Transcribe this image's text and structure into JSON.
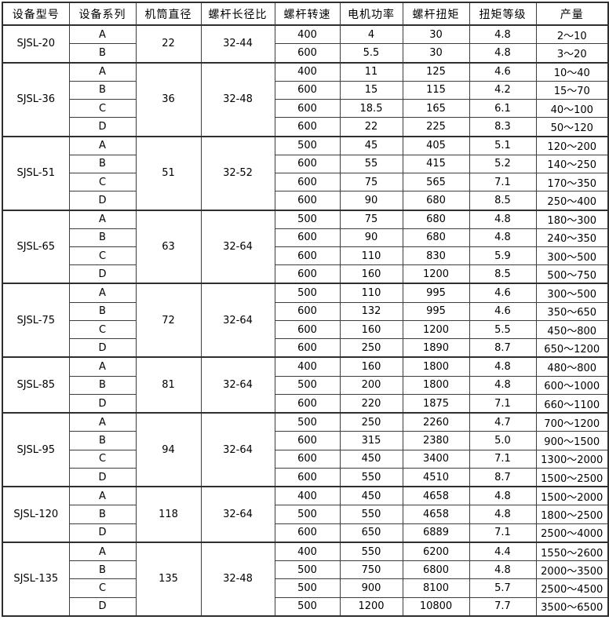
{
  "colors": {
    "background": "#ffffff",
    "border": "#2e2e2e",
    "inner_border": "#3d3d3d",
    "text": "#000000"
  },
  "chart_data": {
    "type": "table",
    "title": "",
    "columns": [
      "设备型号",
      "设备系列",
      "机筒直径",
      "螺杆长径比",
      "螺杆转速",
      "电机功率",
      "螺杆扭矩",
      "扭矩等级",
      "产量"
    ],
    "groups": [
      {
        "model": "SJSL-20",
        "diameter": "22",
        "ld_ratio": "32-44",
        "rows": [
          {
            "series": "A",
            "speed": "400",
            "power": "4",
            "torque": "30",
            "grade": "4.8",
            "output": "2～10"
          },
          {
            "series": "B",
            "speed": "600",
            "power": "5.5",
            "torque": "30",
            "grade": "4.8",
            "output": "3～20"
          }
        ]
      },
      {
        "model": "SJSL-36",
        "diameter": "36",
        "ld_ratio": "32-48",
        "rows": [
          {
            "series": "A",
            "speed": "400",
            "power": "11",
            "torque": "125",
            "grade": "4.6",
            "output": "10～40"
          },
          {
            "series": "B",
            "speed": "600",
            "power": "15",
            "torque": "115",
            "grade": "4.2",
            "output": "15～70"
          },
          {
            "series": "C",
            "speed": "600",
            "power": "18.5",
            "torque": "165",
            "grade": "6.1",
            "output": "40～100"
          },
          {
            "series": "D",
            "speed": "600",
            "power": "22",
            "torque": "225",
            "grade": "8.3",
            "output": "50～120"
          }
        ]
      },
      {
        "model": "SJSL-51",
        "diameter": "51",
        "ld_ratio": "32-52",
        "rows": [
          {
            "series": "A",
            "speed": "500",
            "power": "45",
            "torque": "405",
            "grade": "5.1",
            "output": "120～200"
          },
          {
            "series": "B",
            "speed": "600",
            "power": "55",
            "torque": "415",
            "grade": "5.2",
            "output": "140～250"
          },
          {
            "series": "C",
            "speed": "600",
            "power": "75",
            "torque": "565",
            "grade": "7.1",
            "output": "170～350"
          },
          {
            "series": "D",
            "speed": "600",
            "power": "90",
            "torque": "680",
            "grade": "8.5",
            "output": "250～400"
          }
        ]
      },
      {
        "model": "SJSL-65",
        "diameter": "63",
        "ld_ratio": "32-64",
        "rows": [
          {
            "series": "A",
            "speed": "500",
            "power": "75",
            "torque": "680",
            "grade": "4.8",
            "output": "180～300"
          },
          {
            "series": "B",
            "speed": "600",
            "power": "90",
            "torque": "680",
            "grade": "4.8",
            "output": "240～350"
          },
          {
            "series": "C",
            "speed": "600",
            "power": "110",
            "torque": "830",
            "grade": "5.9",
            "output": "300～500"
          },
          {
            "series": "D",
            "speed": "600",
            "power": "160",
            "torque": "1200",
            "grade": "8.5",
            "output": "500～750"
          }
        ]
      },
      {
        "model": "SJSL-75",
        "diameter": "72",
        "ld_ratio": "32-64",
        "rows": [
          {
            "series": "A",
            "speed": "500",
            "power": "110",
            "torque": "995",
            "grade": "4.6",
            "output": "300～500"
          },
          {
            "series": "B",
            "speed": "600",
            "power": "132",
            "torque": "995",
            "grade": "4.6",
            "output": "350～650"
          },
          {
            "series": "C",
            "speed": "600",
            "power": "160",
            "torque": "1200",
            "grade": "5.5",
            "output": "450～800"
          },
          {
            "series": "D",
            "speed": "600",
            "power": "250",
            "torque": "1890",
            "grade": "8.7",
            "output": "650～1200"
          }
        ]
      },
      {
        "model": "SJSL-85",
        "diameter": "81",
        "ld_ratio": "32-64",
        "rows": [
          {
            "series": "A",
            "speed": "400",
            "power": "160",
            "torque": "1800",
            "grade": "4.8",
            "output": "480～800"
          },
          {
            "series": "B",
            "speed": "500",
            "power": "200",
            "torque": "1800",
            "grade": "4.8",
            "output": "600～1000"
          },
          {
            "series": "D",
            "speed": "600",
            "power": "220",
            "torque": "1875",
            "grade": "7.1",
            "output": "660～1100"
          }
        ]
      },
      {
        "model": "SJSL-95",
        "diameter": "94",
        "ld_ratio": "32-64",
        "rows": [
          {
            "series": "A",
            "speed": "500",
            "power": "250",
            "torque": "2260",
            "grade": "4.7",
            "output": "700～1200"
          },
          {
            "series": "B",
            "speed": "600",
            "power": "315",
            "torque": "2380",
            "grade": "5.0",
            "output": "900～1500"
          },
          {
            "series": "C",
            "speed": "600",
            "power": "450",
            "torque": "3400",
            "grade": "7.1",
            "output": "1300～2000"
          },
          {
            "series": "D",
            "speed": "600",
            "power": "550",
            "torque": "4510",
            "grade": "8.7",
            "output": "1500～2500"
          }
        ]
      },
      {
        "model": "SJSL-120",
        "diameter": "118",
        "ld_ratio": "32-64",
        "rows": [
          {
            "series": "A",
            "speed": "400",
            "power": "450",
            "torque": "4658",
            "grade": "4.8",
            "output": "1500～2000"
          },
          {
            "series": "B",
            "speed": "500",
            "power": "550",
            "torque": "4658",
            "grade": "4.8",
            "output": "1800～2500"
          },
          {
            "series": "D",
            "speed": "600",
            "power": "650",
            "torque": "6889",
            "grade": "7.1",
            "output": "2500～4000"
          }
        ]
      },
      {
        "model": "SJSL-135",
        "diameter": "135",
        "ld_ratio": "32-48",
        "rows": [
          {
            "series": "A",
            "speed": "400",
            "power": "550",
            "torque": "6200",
            "grade": "4.4",
            "output": "1550～2600"
          },
          {
            "series": "B",
            "speed": "500",
            "power": "750",
            "torque": "6800",
            "grade": "4.8",
            "output": "2000～3500"
          },
          {
            "series": "C",
            "speed": "500",
            "power": "900",
            "torque": "8100",
            "grade": "5.7",
            "output": "2500～4500"
          },
          {
            "series": "D",
            "speed": "500",
            "power": "1200",
            "torque": "10800",
            "grade": "7.7",
            "output": "3500～6500"
          }
        ]
      }
    ]
  }
}
